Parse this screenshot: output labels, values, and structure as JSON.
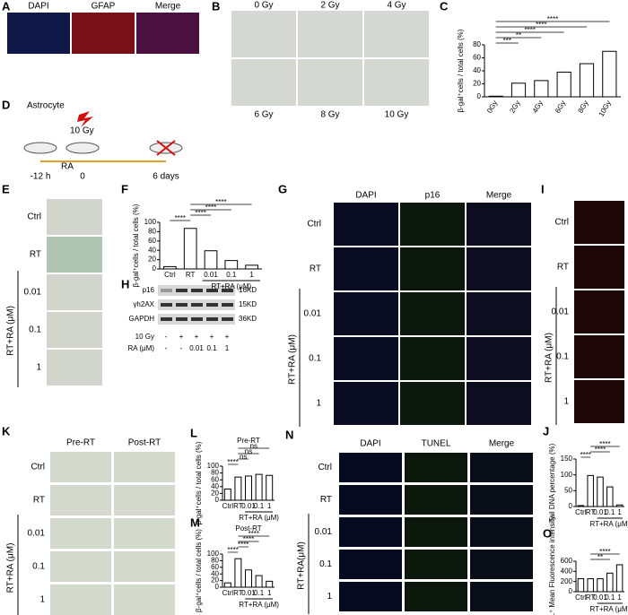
{
  "figure": {
    "letters": [
      "A",
      "B",
      "C",
      "D",
      "E",
      "F",
      "G",
      "H",
      "I",
      "J",
      "K",
      "L",
      "M",
      "N",
      "O"
    ],
    "A": {
      "columns": [
        "DAPI",
        "GFAP",
        "Merge"
      ]
    },
    "B": {
      "labels": [
        "0 Gy",
        "2 Gy",
        "4 Gy",
        "6 Gy",
        "8 Gy",
        "10 Gy"
      ]
    },
    "D": {
      "cell": "Astrocyte",
      "dose": "10 Gy",
      "drug": "RA",
      "times": [
        "-12 h",
        "0",
        "6 days"
      ]
    },
    "E": {
      "rows": [
        "Ctrl",
        "RT",
        "0.01",
        "0.1",
        "1"
      ],
      "group": "RT+RA (μM)"
    },
    "G": {
      "columns": [
        "DAPI",
        "p16",
        "Merge"
      ],
      "rows": [
        "Ctrl",
        "RT",
        "0.01",
        "0.1",
        "1"
      ],
      "group": "RT+RA (μM)"
    },
    "H": {
      "bands": [
        "p16",
        "γh2AX",
        "GAPDH"
      ],
      "sizes": [
        "16KD",
        "15KD",
        "36KD"
      ],
      "conditions": [
        {
          "name": "10 Gy",
          "values": [
            "-",
            "+",
            "+",
            "+",
            "+"
          ]
        },
        {
          "name": "RA (μM)",
          "values": [
            "-",
            "-",
            "0.01",
            "0.1",
            "1"
          ]
        }
      ]
    },
    "I": {
      "rows": [
        "Ctrl",
        "RT",
        "0.01",
        "0.1",
        "1"
      ],
      "group": "RT+RA (μM)"
    },
    "K": {
      "columns": [
        "Pre-RT",
        "Post-RT"
      ],
      "rows": [
        "Ctrl",
        "RT",
        "0.01",
        "0.1",
        "1"
      ],
      "group": "RT+RA (μM)"
    },
    "N": {
      "columns": [
        "DAPI",
        "TUNEL",
        "Merge"
      ],
      "rows": [
        "Ctrl",
        "RT",
        "0.01",
        "0.1",
        "1"
      ],
      "group": "RT+RA(μM)"
    }
  },
  "chart_data": [
    {
      "type": "bar",
      "ylabel": "β-gal⁺cells / total cells (%)",
      "categories": [
        "0Gy",
        "2Gy",
        "4Gy",
        "6Gy",
        "8Gy",
        "10Gy"
      ],
      "values": [
        1,
        21,
        25,
        38,
        51,
        70
      ],
      "ylim": [
        0,
        80
      ],
      "yticks": [
        0,
        20,
        40,
        60,
        80
      ],
      "color": "#ffffff",
      "annotations": [
        "***",
        "**",
        "****",
        "****",
        "****"
      ]
    },
    {
      "type": "bar",
      "ylabel": "β-gal⁺cells / total cells (%)",
      "categories": [
        "Ctrl",
        "RT",
        "0.01",
        "0.1",
        "1"
      ],
      "group": "RT+RA (μM)",
      "values": [
        5,
        87,
        39,
        18,
        8
      ],
      "ylim": [
        0,
        100
      ],
      "yticks": [
        0,
        20,
        40,
        60,
        80,
        100
      ],
      "color": "#ffffff",
      "annotations": [
        "****",
        "****",
        "****",
        "****"
      ]
    },
    {
      "type": "bar",
      "ylabel": "Tail DNA percentage (%)",
      "categories": [
        "Ctrl",
        "RT",
        "0.01",
        "0.1",
        "1"
      ],
      "group": "RT+RA (μM)",
      "values": [
        3,
        98,
        93,
        62,
        5
      ],
      "ylim": [
        0,
        150
      ],
      "yticks": [
        0,
        50,
        100,
        150
      ],
      "color": "#ffffff",
      "annotations": [
        "****",
        "****",
        "****"
      ]
    },
    {
      "type": "bar",
      "title": "Pre-RT",
      "ylabel": "β-gal⁺cells / total cells (%)",
      "categories": [
        "Ctrl",
        "RT",
        "0.01",
        "0.1",
        "1"
      ],
      "group": "RT+RA (μM)",
      "values": [
        33,
        68,
        71,
        76,
        73
      ],
      "ylim": [
        0,
        100
      ],
      "yticks": [
        0,
        20,
        40,
        60,
        80,
        100
      ],
      "color": "#ffffff",
      "annotations": [
        "****",
        "ns",
        "ns",
        "ns"
      ]
    },
    {
      "type": "bar",
      "title": "Post-RT",
      "ylabel": "β-gal⁺cells / total cells (%)",
      "categories": [
        "Ctrl",
        "RT",
        "0.01",
        "0.1",
        "1"
      ],
      "group": "RT+RA (μM)",
      "values": [
        13,
        86,
        52,
        35,
        18
      ],
      "ylim": [
        0,
        100
      ],
      "yticks": [
        0,
        20,
        40,
        60,
        80,
        100
      ],
      "color": "#ffffff",
      "annotations": [
        "****",
        "****",
        "****",
        "****"
      ]
    },
    {
      "type": "bar",
      "ylabel": "TUNEL⁺ Mean Fluorescence intensity",
      "categories": [
        "Ctrl",
        "RT",
        "0.01",
        "0.1",
        "1"
      ],
      "group": "RT+RA (μM)",
      "values": [
        255,
        255,
        255,
        365,
        530
      ],
      "ylim": [
        0,
        600
      ],
      "yticks": [
        0,
        200,
        400,
        600
      ],
      "color": "#ffffff",
      "annotations": [
        "**",
        "****"
      ]
    }
  ]
}
